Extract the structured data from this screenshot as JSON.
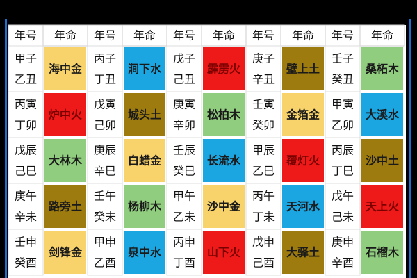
{
  "table": {
    "headers": [
      "年号",
      "年命",
      "年号",
      "年命",
      "年号",
      "年命",
      "年号",
      "年命",
      "年号",
      "年命"
    ],
    "rows": [
      [
        {
          "years": [
            "甲子",
            "乙丑"
          ],
          "element": "海中金",
          "color": "#f8d36b"
        },
        {
          "years": [
            "丙子",
            "丁丑"
          ],
          "element": "涧下水",
          "color": "#1ba6e2"
        },
        {
          "years": [
            "戊子",
            "己丑"
          ],
          "element": "霹雳火",
          "color": "#ee1a1a"
        },
        {
          "years": [
            "庚子",
            "辛丑"
          ],
          "element": "壁上土",
          "color": "#9d7b0f"
        },
        {
          "years": [
            "壬子",
            "癸丑"
          ],
          "element": "桑柘木",
          "color": "#90cd7f"
        }
      ],
      [
        {
          "years": [
            "丙寅",
            "丁卯"
          ],
          "element": "炉中火",
          "color": "#ee1a1a"
        },
        {
          "years": [
            "戊寅",
            "己卯"
          ],
          "element": "城头土",
          "color": "#9d7b0f"
        },
        {
          "years": [
            "庚寅",
            "辛卯"
          ],
          "element": "松柏木",
          "color": "#90cd7f"
        },
        {
          "years": [
            "壬寅",
            "癸卯"
          ],
          "element": "金箔金",
          "color": "#f8d36b"
        },
        {
          "years": [
            "甲寅",
            "乙卯"
          ],
          "element": "大溪水",
          "color": "#1ba6e2"
        }
      ],
      [
        {
          "years": [
            "戊辰",
            "己巳"
          ],
          "element": "大林木",
          "color": "#90cd7f"
        },
        {
          "years": [
            "庚辰",
            "辛巳"
          ],
          "element": "白蜡金",
          "color": "#f8d36b"
        },
        {
          "years": [
            "壬辰",
            "癸巳"
          ],
          "element": "长流水",
          "color": "#1ba6e2"
        },
        {
          "years": [
            "甲辰",
            "乙巳"
          ],
          "element": "覆灯火",
          "color": "#ee1a1a"
        },
        {
          "years": [
            "丙辰",
            "丁巳"
          ],
          "element": "沙中土",
          "color": "#9d7b0f"
        }
      ],
      [
        {
          "years": [
            "庚午",
            "辛未"
          ],
          "element": "路旁土",
          "color": "#9d7b0f"
        },
        {
          "years": [
            "壬午",
            "癸未"
          ],
          "element": "杨柳木",
          "color": "#90cd7f"
        },
        {
          "years": [
            "甲午",
            "乙未"
          ],
          "element": "沙中金",
          "color": "#f8d36b"
        },
        {
          "years": [
            "丙午",
            "丁未"
          ],
          "element": "天河水",
          "color": "#1ba6e2"
        },
        {
          "years": [
            "戊午",
            "己未"
          ],
          "element": "天上火",
          "color": "#ee1a1a"
        }
      ],
      [
        {
          "years": [
            "壬申",
            "癸酉"
          ],
          "element": "剑锋金",
          "color": "#f8d36b"
        },
        {
          "years": [
            "甲申",
            "乙酉"
          ],
          "element": "泉中水",
          "color": "#1ba6e2"
        },
        {
          "years": [
            "丙申",
            "丁酉"
          ],
          "element": "山下火",
          "color": "#ee1a1a"
        },
        {
          "years": [
            "戊申",
            "己酉"
          ],
          "element": "大驿土",
          "color": "#9d7b0f"
        },
        {
          "years": [
            "庚申",
            "辛酉"
          ],
          "element": "石榴木",
          "color": "#90cd7f"
        }
      ]
    ]
  }
}
